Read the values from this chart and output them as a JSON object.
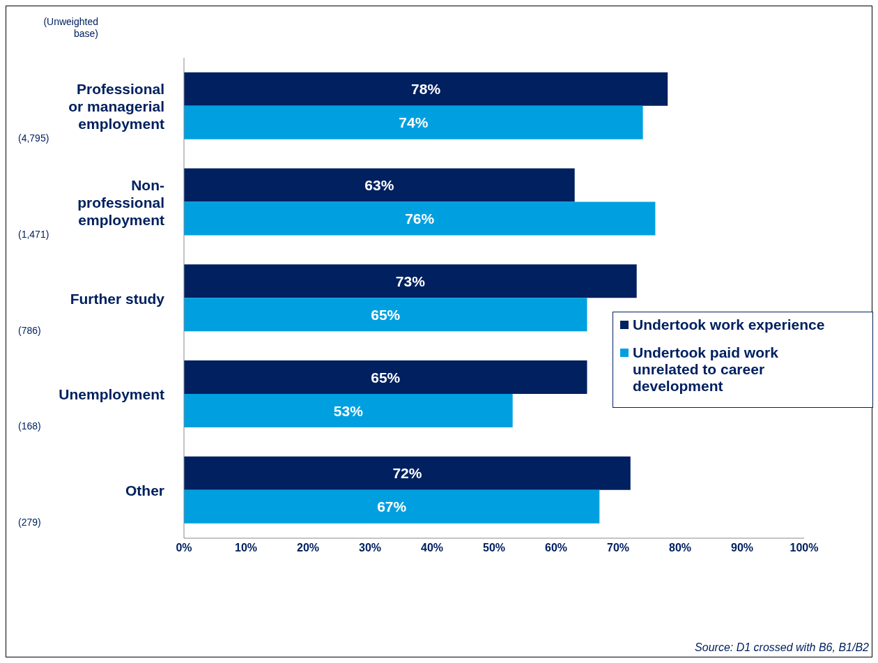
{
  "chart_data": {
    "type": "bar",
    "orientation": "horizontal",
    "categories": [
      "Professional or managerial employment",
      "Non-professional employment",
      "Further study",
      "Unemployment",
      "Other"
    ],
    "series": [
      {
        "name": "Undertook work experience",
        "color": "#002060",
        "values": [
          78,
          63,
          73,
          65,
          72
        ],
        "value_labels": [
          "78%",
          "63%",
          "73%",
          "65%",
          "72%"
        ]
      },
      {
        "name": "Undertook paid work unrelated to career development",
        "color": "#00a0e0",
        "values": [
          74,
          76,
          65,
          53,
          67
        ],
        "value_labels": [
          "74%",
          "76%",
          "65%",
          "53%",
          "67%"
        ]
      }
    ],
    "xlim": [
      0,
      100
    ],
    "xticks": [
      {
        "value": 0,
        "label": "0%"
      },
      {
        "value": 10,
        "label": "10%"
      },
      {
        "value": 20,
        "label": "20%"
      },
      {
        "value": 30,
        "label": "30%"
      },
      {
        "value": 40,
        "label": "40%"
      },
      {
        "value": 50,
        "label": "50%"
      },
      {
        "value": 60,
        "label": "60%"
      },
      {
        "value": 70,
        "label": "70%"
      },
      {
        "value": 80,
        "label": "80%"
      },
      {
        "value": 90,
        "label": "90%"
      },
      {
        "value": 100,
        "label": "100%"
      }
    ],
    "legend": "right",
    "grid": false,
    "annotations": [
      "(Unweighted base)",
      "(4,795)",
      "(1,471)",
      "(786)",
      "(168)",
      "(279)",
      "Source: D1 crossed with B6, B1/B2"
    ]
  }
}
